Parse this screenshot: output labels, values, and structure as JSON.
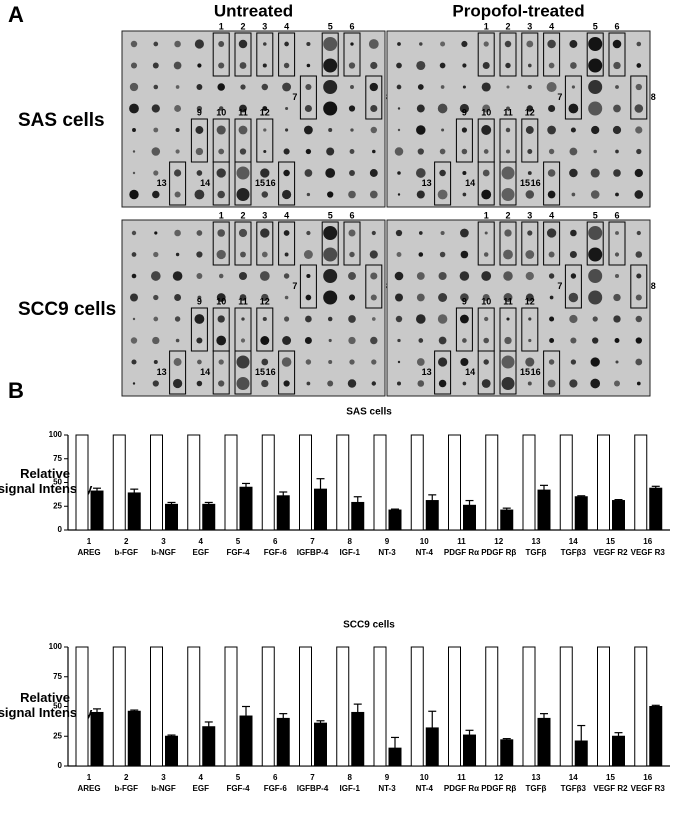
{
  "panel_a": {
    "label": "A",
    "columns": [
      "Untreated",
      "Propofol-treated"
    ],
    "rows": [
      "SAS cells",
      "SCC9 cells"
    ],
    "box_labels": [
      "1",
      "2",
      "3",
      "4",
      "5",
      "6",
      "7",
      "8",
      "9",
      "10",
      "11",
      "12",
      "13",
      "14",
      "15",
      "16"
    ]
  },
  "panel_b_label": "B",
  "chart_data": [
    {
      "type": "bar",
      "title": "SAS cells",
      "ylabel_lines": [
        "Relative",
        "signal Intensity"
      ],
      "category_numbers": [
        "1",
        "2",
        "3",
        "4",
        "5",
        "6",
        "7",
        "8",
        "9",
        "10",
        "11",
        "12",
        "13",
        "14",
        "15",
        "16"
      ],
      "categories": [
        "AREG",
        "b-FGF",
        "b-NGF",
        "EGF",
        "FGF-4",
        "FGF-6",
        "IGFBP-4",
        "IGF-1",
        "NT-3",
        "NT-4",
        "PDGF Rα",
        "PDGF Rβ",
        "TGFβ",
        "TGFβ3",
        "VEGF R2",
        "VEGF R3"
      ],
      "series": [
        {
          "color": "#ffffff",
          "values": [
            100,
            100,
            100,
            100,
            100,
            100,
            100,
            100,
            100,
            100,
            100,
            100,
            100,
            100,
            100,
            100
          ]
        },
        {
          "color": "#000000",
          "values": [
            41,
            39,
            27,
            27,
            45,
            36,
            43,
            29,
            21,
            31,
            26,
            21,
            42,
            35,
            31,
            44
          ],
          "errors": [
            3,
            4,
            2,
            2,
            4,
            4,
            11,
            6,
            1,
            6,
            5,
            2,
            5,
            1,
            1,
            2
          ]
        }
      ],
      "ylim": [
        0,
        100
      ],
      "yticks": [
        0,
        25,
        50,
        75,
        100
      ]
    },
    {
      "type": "bar",
      "title": "SCC9 cells",
      "ylabel_lines": [
        "Relative",
        "signal Intensity"
      ],
      "category_numbers": [
        "1",
        "2",
        "3",
        "4",
        "5",
        "6",
        "7",
        "8",
        "9",
        "10",
        "11",
        "12",
        "13",
        "14",
        "15",
        "16"
      ],
      "categories": [
        "AREG",
        "b-FGF",
        "b-NGF",
        "EGF",
        "FGF-4",
        "FGF-6",
        "IGFBP-4",
        "IGF-1",
        "NT-3",
        "NT-4",
        "PDGF Rα",
        "PDGF Rβ",
        "TGFβ",
        "TGFβ3",
        "VEGF R2",
        "VEGF R3"
      ],
      "series": [
        {
          "color": "#ffffff",
          "values": [
            100,
            100,
            100,
            100,
            100,
            100,
            100,
            100,
            100,
            100,
            100,
            100,
            100,
            100,
            100,
            100
          ]
        },
        {
          "color": "#000000",
          "values": [
            45,
            46,
            25,
            33,
            42,
            40,
            36,
            45,
            15,
            32,
            26,
            22,
            40,
            21,
            25,
            50
          ],
          "errors": [
            3,
            1,
            1,
            4,
            8,
            4,
            2,
            7,
            9,
            14,
            4,
            1,
            4,
            13,
            3,
            1
          ]
        }
      ],
      "ylim": [
        0,
        100
      ],
      "yticks": [
        0,
        25,
        50,
        75,
        100
      ]
    }
  ]
}
